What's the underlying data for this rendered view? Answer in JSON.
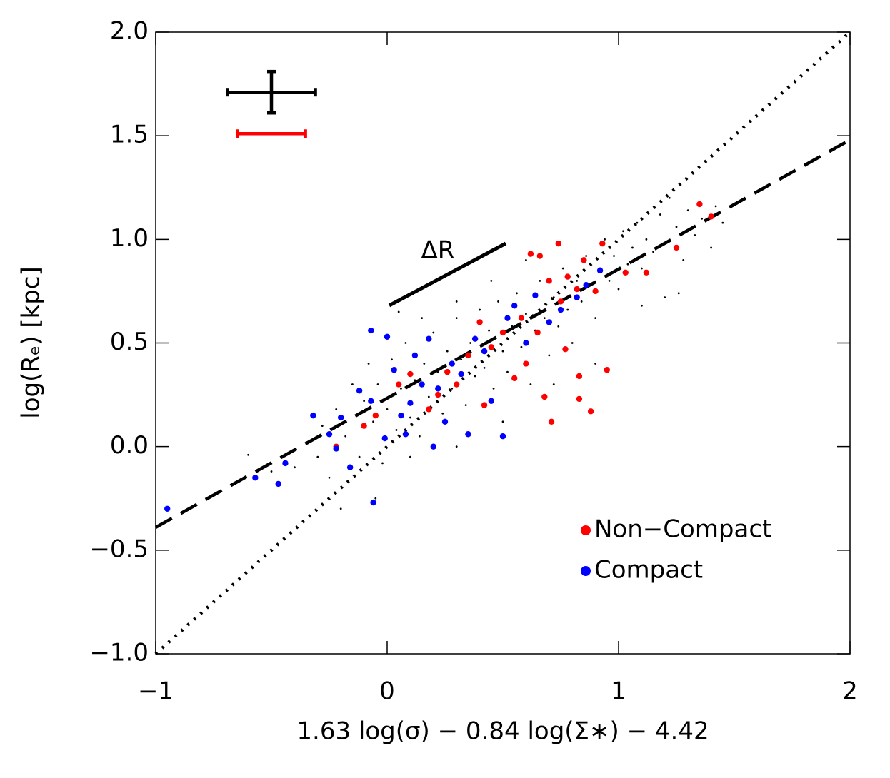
{
  "chart_data": {
    "type": "scatter",
    "xlabel": "1.63 log(σ) − 0.84 log(Σ∗) − 4.42",
    "ylabel": "log(Rₑ)  [kpc]",
    "xlim": [
      -1,
      2
    ],
    "ylim": [
      -1,
      2
    ],
    "xticks": [
      {
        "value": -1,
        "label": "−1"
      },
      0,
      1,
      2
    ],
    "yticks": [
      {
        "value": -1,
        "label": "−1.0"
      },
      {
        "value": -0.5,
        "label": "−0.5"
      },
      {
        "value": 0,
        "label": "0.0"
      },
      0.5,
      {
        "value": 1,
        "label": "1.0"
      },
      1.5,
      {
        "value": 2,
        "label": "2.0"
      }
    ],
    "legend": "lower right",
    "annotation": "ΔR",
    "series": [
      {
        "color": "#000000",
        "size": "small",
        "x": [
          -0.6,
          -0.5,
          -0.4,
          -0.35,
          -0.3,
          -0.28,
          -0.25,
          -0.22,
          -0.18,
          -0.15,
          -0.12,
          -0.1,
          -0.08,
          -0.06,
          -0.04,
          -0.02,
          0,
          0.02,
          0.04,
          0.06,
          0.08,
          0.1,
          0.12,
          0.14,
          0.16,
          0.18,
          0.2,
          0.22,
          0.24,
          0.26,
          0.28,
          0.3,
          0.32,
          0.34,
          0.36,
          0.38,
          0.4,
          0.42,
          0.44,
          0.46,
          0.48,
          0.5,
          0.52,
          0.54,
          0.56,
          0.58,
          0.6,
          0.62,
          0.64,
          0.66,
          0.68,
          0.7,
          0.72,
          0.74,
          0.76,
          0.78,
          0.8,
          0.82,
          0.84,
          0.86,
          0.88,
          0.9,
          0.92,
          0.94,
          0.96,
          0.98,
          1.0,
          1.02,
          1.04,
          1.06,
          1.08,
          1.1,
          1.12,
          1.15,
          1.18,
          1.2,
          1.22,
          1.25,
          1.28,
          1.3,
          1.33,
          1.36,
          1.4,
          1.45,
          1.42,
          1.2,
          1.1,
          0.9,
          0.72,
          0.5,
          0.3,
          0.1,
          -0.05,
          -0.2,
          0.45,
          0.6,
          0.3,
          0.15,
          1.26,
          0.05
        ],
        "values": [
          -0.04,
          -0.12,
          -0.1,
          0.02,
          -0.05,
          0.1,
          -0.15,
          0.18,
          0.05,
          0.3,
          -0.05,
          0.22,
          0.4,
          0.12,
          0.3,
          -0.08,
          0.18,
          0.42,
          0.08,
          0.28,
          0.5,
          0.14,
          0.32,
          0.05,
          0.4,
          0.24,
          0.55,
          0.36,
          0.16,
          0.46,
          0.28,
          0.62,
          0.42,
          0.2,
          0.5,
          0.34,
          0.66,
          0.38,
          0.56,
          0.28,
          0.7,
          0.46,
          0.36,
          0.58,
          0.74,
          0.48,
          0.64,
          0.3,
          0.56,
          0.8,
          0.62,
          0.44,
          0.72,
          0.58,
          0.86,
          0.66,
          0.5,
          0.8,
          0.7,
          0.92,
          0.78,
          0.62,
          0.86,
          1.0,
          0.8,
          0.92,
          0.76,
          1.04,
          0.88,
          0.96,
          1.08,
          0.86,
          1.0,
          0.94,
          1.12,
          0.98,
          1.2,
          1.06,
          0.9,
          1.14,
          1.02,
          1.1,
          0.96,
          1.08,
          1.16,
          0.72,
          0.68,
          0.4,
          0.3,
          0.12,
          0.0,
          -0.05,
          -0.25,
          -0.3,
          0.8,
          0.9,
          0.7,
          0.62,
          0.74,
          0.65
        ]
      },
      {
        "name": "Non−Compact",
        "color": "#ff0000",
        "x": [
          1.35,
          1.25,
          1.4,
          1.12,
          1.03,
          0.95,
          0.88,
          0.83,
          0.71,
          0.68,
          0.83,
          0.93,
          0.85,
          0.74,
          0.66,
          0.62,
          0.78,
          0.82,
          0.9,
          0.7,
          0.58,
          0.5,
          0.45,
          0.4,
          0.35,
          0.3,
          0.26,
          0.22,
          0.18,
          0.1,
          0.05,
          -0.05,
          -0.22,
          -0.1,
          0.6,
          0.65,
          0.77,
          0.55,
          0.42,
          0.75
        ],
        "values": [
          1.17,
          0.96,
          1.11,
          0.84,
          0.84,
          0.37,
          0.17,
          0.23,
          0.12,
          0.24,
          0.34,
          0.98,
          0.9,
          0.98,
          0.92,
          0.93,
          0.82,
          0.76,
          0.75,
          0.8,
          0.62,
          0.55,
          0.48,
          0.6,
          0.44,
          0.3,
          0.36,
          0.25,
          0.18,
          0.35,
          0.3,
          0.15,
          0.0,
          0.1,
          0.4,
          0.55,
          0.47,
          0.33,
          0.2,
          0.7
        ]
      },
      {
        "name": "Compact",
        "color": "#0000ff",
        "x": [
          -0.95,
          -0.57,
          -0.47,
          -0.44,
          -0.32,
          -0.25,
          -0.22,
          -0.2,
          -0.16,
          -0.12,
          -0.07,
          -0.07,
          -0.06,
          0.0,
          0.03,
          0.08,
          0.1,
          0.12,
          0.15,
          0.18,
          0.22,
          0.25,
          0.28,
          0.32,
          0.35,
          0.38,
          0.42,
          0.45,
          0.5,
          0.52,
          0.55,
          0.6,
          0.64,
          0.7,
          0.75,
          0.82,
          0.86,
          0.92,
          -0.01,
          0.06,
          0.2
        ],
        "values": [
          -0.3,
          -0.15,
          -0.18,
          -0.08,
          0.15,
          0.06,
          -0.01,
          0.14,
          -0.1,
          0.27,
          0.22,
          0.56,
          -0.27,
          0.53,
          0.37,
          0.06,
          0.21,
          0.44,
          0.3,
          0.52,
          0.28,
          0.12,
          0.4,
          0.35,
          0.06,
          0.52,
          0.46,
          0.22,
          0.05,
          0.62,
          0.68,
          0.5,
          0.73,
          0.6,
          0.66,
          0.72,
          0.78,
          0.85,
          0.04,
          0.15,
          0.0
        ]
      }
    ],
    "fit_lines": [
      {
        "style": "dotted",
        "x": [
          -1,
          2
        ],
        "values": [
          -1,
          2
        ]
      },
      {
        "style": "dashed",
        "x": [
          -1,
          2
        ],
        "values": [
          -0.39,
          1.48
        ]
      }
    ],
    "error_bars": [
      {
        "color": "#000000",
        "x": -0.5,
        "y": 1.71,
        "xerr": 0.19,
        "yerr": 0.1
      },
      {
        "color": "#ff0000",
        "x": -0.5,
        "y": 1.51,
        "xerr": 0.147
      }
    ]
  }
}
